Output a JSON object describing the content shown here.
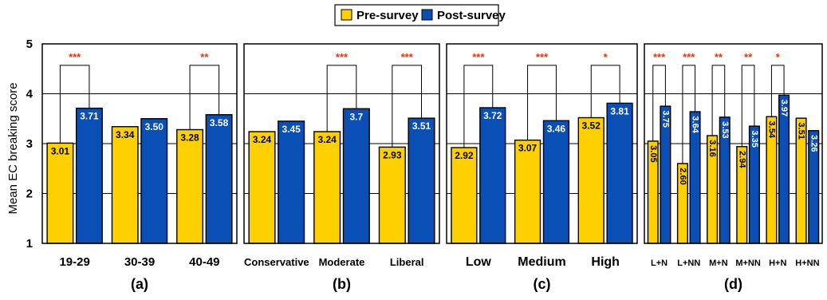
{
  "chart_data": {
    "type": "bar",
    "ylabel": "Mean EC breaking score",
    "ylim": [
      1,
      5
    ],
    "yticks": [
      "1",
      "2",
      "3",
      "4",
      "5"
    ],
    "grid": true,
    "legend": {
      "placement": "top-center",
      "items": [
        {
          "name": "Pre-survey",
          "color": "#FFD000"
        },
        {
          "name": "Post-survey",
          "color": "#0A4FB5"
        }
      ]
    },
    "panels": [
      {
        "label": "(a)",
        "categories": [
          "19-29",
          "30-39",
          "40-49"
        ],
        "series": [
          {
            "name": "Pre-survey",
            "values": [
              3.01,
              3.34,
              3.28
            ],
            "labels": [
              "3.01",
              "3.34",
              "3.28"
            ]
          },
          {
            "name": "Post-survey",
            "values": [
              3.71,
              3.5,
              3.58
            ],
            "labels": [
              "3.71",
              "3.50",
              "3.58"
            ]
          }
        ],
        "significance": [
          "***",
          "",
          "**"
        ]
      },
      {
        "label": "(b)",
        "categories": [
          "Conservative",
          "Moderate",
          "Liberal"
        ],
        "series": [
          {
            "name": "Pre-survey",
            "values": [
              3.24,
              3.24,
              2.93
            ],
            "labels": [
              "3.24",
              "3.24",
              "2.93"
            ]
          },
          {
            "name": "Post-survey",
            "values": [
              3.45,
              3.7,
              3.51
            ],
            "labels": [
              "3.45",
              "3.7",
              "3.51"
            ]
          }
        ],
        "significance": [
          "",
          "***",
          "***"
        ]
      },
      {
        "label": "(c)",
        "categories": [
          "Low",
          "Medium",
          "High"
        ],
        "series": [
          {
            "name": "Pre-survey",
            "values": [
              2.92,
              3.07,
              3.52
            ],
            "labels": [
              "2.92",
              "3.07",
              "3.52"
            ]
          },
          {
            "name": "Post-survey",
            "values": [
              3.72,
              3.46,
              3.81
            ],
            "labels": [
              "3.72",
              "3.46",
              "3.81"
            ]
          }
        ],
        "significance": [
          "***",
          "***",
          "*"
        ]
      },
      {
        "label": "(d)",
        "categories": [
          "L+N",
          "L+NN",
          "M+N",
          "M+NN",
          "H+N",
          "H+NN"
        ],
        "series": [
          {
            "name": "Pre-survey",
            "values": [
              3.05,
              2.6,
              3.16,
              2.94,
              3.54,
              3.51
            ],
            "labels": [
              "3.05",
              "2.60",
              "3.16",
              "2.94",
              "3.54",
              "3.51"
            ]
          },
          {
            "name": "Post-survey",
            "values": [
              3.75,
              3.64,
              3.53,
              3.35,
              3.97,
              3.26
            ],
            "labels": [
              "3.75",
              "3.64",
              "3.53",
              "3.35",
              "3.97",
              "3.26"
            ]
          }
        ],
        "significance": [
          "***",
          "***",
          "**",
          "**",
          "*",
          ""
        ]
      }
    ]
  }
}
